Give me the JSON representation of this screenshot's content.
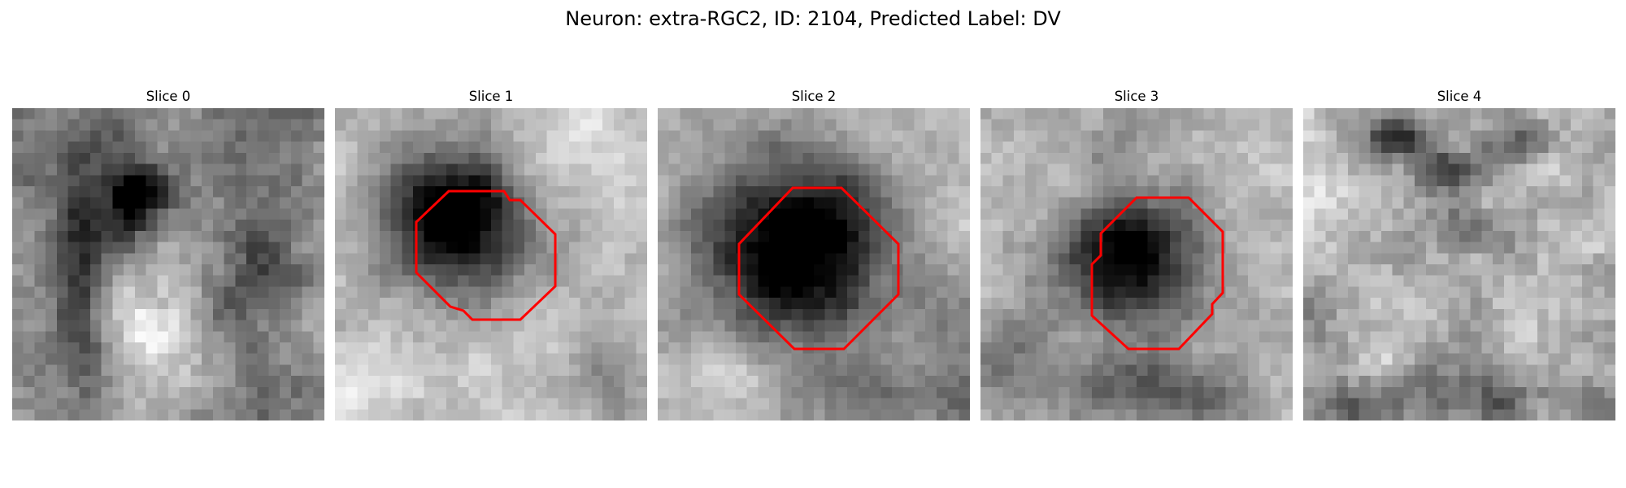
{
  "figure": {
    "title": "Neuron: extra-RGC2, ID: 2104, Predicted Label: DV"
  },
  "panels": [
    {
      "title": "Slice 0",
      "has_outline": false
    },
    {
      "title": "Slice 1",
      "has_outline": true
    },
    {
      "title": "Slice 2",
      "has_outline": true
    },
    {
      "title": "Slice 3",
      "has_outline": true
    },
    {
      "title": "Slice 4",
      "has_outline": false
    }
  ],
  "colors": {
    "outline": "#ff0000",
    "background": "#ffffff"
  },
  "image": {
    "colormap": "grayscale"
  }
}
